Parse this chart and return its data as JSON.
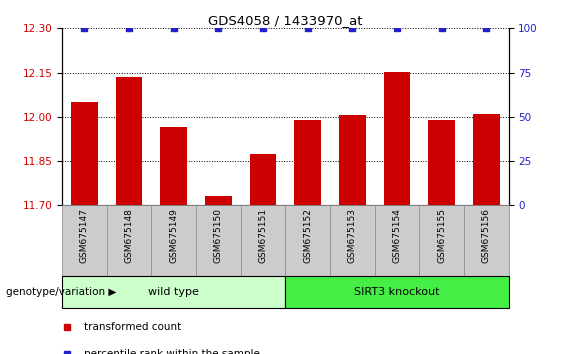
{
  "title": "GDS4058 / 1433970_at",
  "samples": [
    "GSM675147",
    "GSM675148",
    "GSM675149",
    "GSM675150",
    "GSM675151",
    "GSM675152",
    "GSM675153",
    "GSM675154",
    "GSM675155",
    "GSM675156"
  ],
  "bar_values": [
    12.05,
    12.135,
    11.965,
    11.73,
    11.875,
    11.99,
    12.005,
    12.152,
    11.99,
    12.01
  ],
  "percentile_values": [
    100,
    100,
    100,
    100,
    100,
    100,
    100,
    100,
    100,
    100
  ],
  "bar_color": "#cc0000",
  "percentile_color": "#2222cc",
  "ylim_left": [
    11.7,
    12.3
  ],
  "ylim_right": [
    0,
    100
  ],
  "yticks_left": [
    11.7,
    11.85,
    12.0,
    12.15,
    12.3
  ],
  "yticks_right": [
    0,
    25,
    50,
    75,
    100
  ],
  "groups": [
    {
      "label": "wild type",
      "start": 0,
      "end": 5,
      "color": "#ccffcc"
    },
    {
      "label": "SIRT3 knockout",
      "start": 5,
      "end": 10,
      "color": "#44ee44"
    }
  ],
  "legend_items": [
    {
      "label": "transformed count",
      "color": "#cc0000"
    },
    {
      "label": "percentile rank within the sample",
      "color": "#2222cc"
    }
  ],
  "genotype_label": "genotype/variation",
  "tick_label_color_left": "#cc0000",
  "tick_label_color_right": "#2222cc",
  "sample_box_color": "#cccccc",
  "sample_box_edge": "#888888"
}
